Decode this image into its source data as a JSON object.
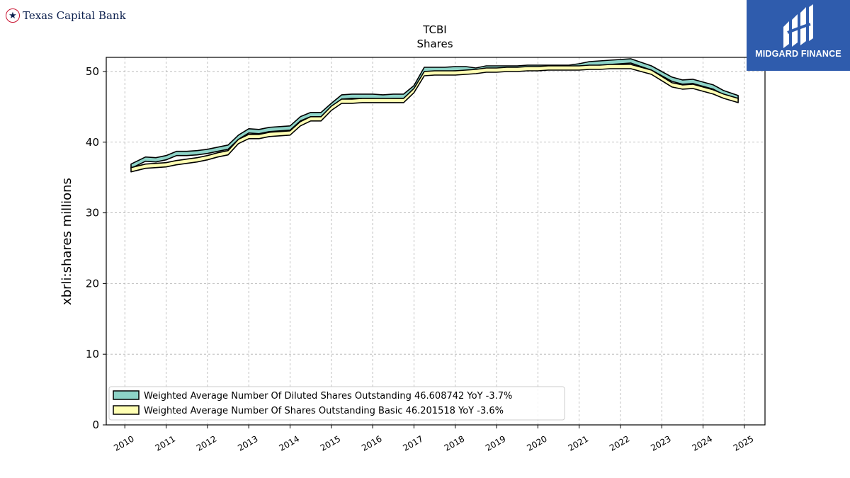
{
  "header": {
    "bank_name": "Texas Capital Bank",
    "logo_text": "MIDGARD FINANCE"
  },
  "chart_data": {
    "type": "area",
    "title": "TCBI",
    "subtitle": "Shares",
    "xlabel": "",
    "ylabel": "xbrli:shares millions",
    "xlim": [
      2009.55,
      2025.5
    ],
    "ylim": [
      0,
      52
    ],
    "yticks": [
      0,
      10,
      20,
      30,
      40,
      50
    ],
    "xticks": [
      "2010",
      "2011",
      "2012",
      "2013",
      "2014",
      "2015",
      "2016",
      "2017",
      "2018",
      "2019",
      "2020",
      "2021",
      "2022",
      "2023",
      "2024",
      "2025"
    ],
    "grid": true,
    "legend_position": "lower-left",
    "series": [
      {
        "name": "Weighted Average Number Of Diluted Shares Outstanding",
        "legend_label": "Weighted Average Number Of Diluted Shares Outstanding  46.608742 YoY -3.7%",
        "color": "#8dd3c7",
        "x": [
          2010.15,
          2010.5,
          2010.75,
          2011.0,
          2011.25,
          2011.5,
          2011.75,
          2012.0,
          2012.25,
          2012.5,
          2012.75,
          2013.0,
          2013.25,
          2013.5,
          2013.75,
          2014.0,
          2014.25,
          2014.5,
          2014.75,
          2015.0,
          2015.25,
          2015.5,
          2015.75,
          2016.0,
          2016.25,
          2016.5,
          2016.75,
          2017.0,
          2017.25,
          2017.5,
          2017.75,
          2018.0,
          2018.25,
          2018.5,
          2018.75,
          2019.0,
          2019.25,
          2019.5,
          2019.75,
          2020.0,
          2020.25,
          2020.5,
          2020.75,
          2021.0,
          2021.25,
          2021.5,
          2021.75,
          2022.0,
          2022.25,
          2022.5,
          2022.75,
          2023.0,
          2023.25,
          2023.5,
          2023.75,
          2024.0,
          2024.25,
          2024.5,
          2024.85
        ],
        "values": [
          36.9,
          37.9,
          37.8,
          38.1,
          38.7,
          38.7,
          38.8,
          39.0,
          39.3,
          39.6,
          41.0,
          41.9,
          41.8,
          42.1,
          42.2,
          42.3,
          43.6,
          44.2,
          44.2,
          45.5,
          46.7,
          46.8,
          46.8,
          46.8,
          46.7,
          46.8,
          46.8,
          48.0,
          50.6,
          50.6,
          50.6,
          50.7,
          50.7,
          50.5,
          50.8,
          50.8,
          50.8,
          50.8,
          50.9,
          50.9,
          50.9,
          50.9,
          50.9,
          51.1,
          51.4,
          51.5,
          51.6,
          51.7,
          51.8,
          51.3,
          50.8,
          50.0,
          49.2,
          48.8,
          48.9,
          48.5,
          48.1,
          47.3,
          46.6
        ]
      },
      {
        "name": "Weighted Average Number Of Shares Outstanding Basic",
        "legend_label": "Weighted Average Number Of Shares Outstanding Basic  46.201518 YoY -3.6%",
        "color": "#ffffb3",
        "x": [
          2010.15,
          2010.5,
          2010.75,
          2011.0,
          2011.25,
          2011.5,
          2011.75,
          2012.0,
          2012.25,
          2012.5,
          2012.75,
          2013.0,
          2013.25,
          2013.5,
          2013.75,
          2014.0,
          2014.25,
          2014.5,
          2014.75,
          2015.0,
          2015.25,
          2015.5,
          2015.75,
          2016.0,
          2016.25,
          2016.5,
          2016.75,
          2017.0,
          2017.25,
          2017.5,
          2017.75,
          2018.0,
          2018.25,
          2018.5,
          2018.75,
          2019.0,
          2019.25,
          2019.5,
          2019.75,
          2020.0,
          2020.25,
          2020.5,
          2020.75,
          2021.0,
          2021.25,
          2021.5,
          2021.75,
          2022.0,
          2022.25,
          2022.5,
          2022.75,
          2023.0,
          2023.25,
          2023.5,
          2023.75,
          2024.0,
          2024.25,
          2024.5,
          2024.85
        ],
        "values": [
          36.4,
          36.9,
          37.0,
          37.1,
          37.4,
          37.6,
          37.8,
          38.1,
          38.5,
          38.8,
          40.4,
          41.1,
          41.1,
          41.4,
          41.5,
          41.6,
          42.9,
          43.6,
          43.6,
          45.1,
          46.1,
          46.1,
          46.2,
          46.2,
          46.2,
          46.2,
          46.2,
          47.6,
          50.0,
          50.1,
          50.1,
          50.1,
          50.2,
          50.3,
          50.5,
          50.5,
          50.6,
          50.6,
          50.7,
          50.7,
          50.8,
          50.8,
          50.8,
          50.8,
          50.9,
          50.9,
          51.0,
          51.0,
          51.0,
          50.6,
          50.2,
          49.3,
          48.4,
          48.1,
          48.2,
          47.8,
          47.4,
          46.8,
          46.2
        ]
      }
    ]
  }
}
